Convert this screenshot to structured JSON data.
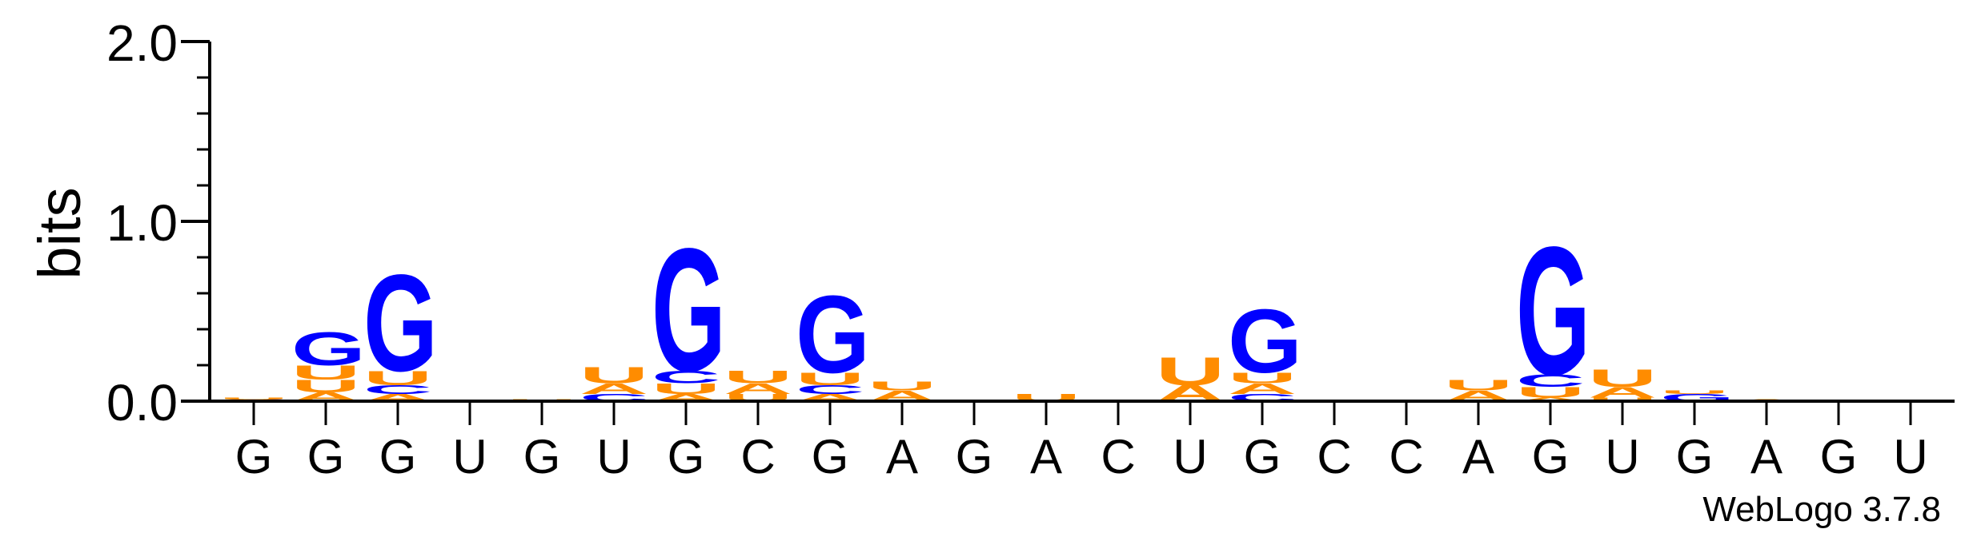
{
  "chart_data": {
    "type": "sequence-logo",
    "ylabel": "bits",
    "ylim": [
      0,
      2.0
    ],
    "yticks": [
      "0.0",
      "1.0",
      "2.0"
    ],
    "xticks": [
      "G",
      "G",
      "G",
      "U",
      "G",
      "U",
      "G",
      "C",
      "G",
      "A",
      "G",
      "A",
      "C",
      "U",
      "G",
      "C",
      "C",
      "A",
      "G",
      "U",
      "G",
      "A",
      "G",
      "U"
    ],
    "colors": {
      "G": "#0000ff",
      "U": "#ff8c00",
      "A": "#ff8c00",
      "C": "#0000ff"
    },
    "columns": [
      [
        {
          "l": "C",
          "h": 0.01
        },
        {
          "l": "U",
          "h": 0.01
        }
      ],
      [
        {
          "l": "A",
          "h": 0.05
        },
        {
          "l": "U",
          "h": 0.07
        },
        {
          "l": "U",
          "h": 0.08
        },
        {
          "l": "G",
          "h": 0.19
        }
      ],
      [
        {
          "l": "A",
          "h": 0.04
        },
        {
          "l": "C",
          "h": 0.05
        },
        {
          "l": "U",
          "h": 0.08
        },
        {
          "l": "G",
          "h": 0.55
        }
      ],
      [],
      [
        {
          "l": "U",
          "h": 0.01
        }
      ],
      [
        {
          "l": "C",
          "h": 0.04
        },
        {
          "l": "A",
          "h": 0.06
        },
        {
          "l": "U",
          "h": 0.09
        }
      ],
      [
        {
          "l": "A",
          "h": 0.04
        },
        {
          "l": "U",
          "h": 0.06
        },
        {
          "l": "C",
          "h": 0.07
        },
        {
          "l": "G",
          "h": 0.7
        }
      ],
      [
        {
          "l": "U",
          "h": 0.04
        },
        {
          "l": "A",
          "h": 0.06
        },
        {
          "l": "U",
          "h": 0.07
        }
      ],
      [
        {
          "l": "A",
          "h": 0.04
        },
        {
          "l": "C",
          "h": 0.05
        },
        {
          "l": "U",
          "h": 0.07
        },
        {
          "l": "G",
          "h": 0.44
        }
      ],
      [
        {
          "l": "A",
          "h": 0.06
        },
        {
          "l": "U",
          "h": 0.05
        }
      ],
      [],
      [
        {
          "l": "U",
          "h": 0.04
        }
      ],
      [],
      [
        {
          "l": "A",
          "h": 0.09
        },
        {
          "l": "U",
          "h": 0.16
        }
      ],
      [
        {
          "l": "C",
          "h": 0.04
        },
        {
          "l": "A",
          "h": 0.06
        },
        {
          "l": "U",
          "h": 0.06
        },
        {
          "l": "G",
          "h": 0.36
        }
      ],
      [],
      [],
      [
        {
          "l": "A",
          "h": 0.06
        },
        {
          "l": "U",
          "h": 0.06
        }
      ],
      [
        {
          "l": "A",
          "h": 0.02
        },
        {
          "l": "U",
          "h": 0.06
        },
        {
          "l": "C",
          "h": 0.07
        },
        {
          "l": "G",
          "h": 0.73
        }
      ],
      [
        {
          "l": "U",
          "h": 0.02
        },
        {
          "l": "A",
          "h": 0.06
        },
        {
          "l": "U",
          "h": 0.1
        }
      ],
      [
        {
          "l": "G",
          "h": 0.04
        },
        {
          "l": "U",
          "h": 0.02
        }
      ],
      [
        {
          "l": "A",
          "h": 0.01
        }
      ],
      [],
      []
    ]
  },
  "footer": {
    "credit": "WebLogo 3.7.8"
  }
}
